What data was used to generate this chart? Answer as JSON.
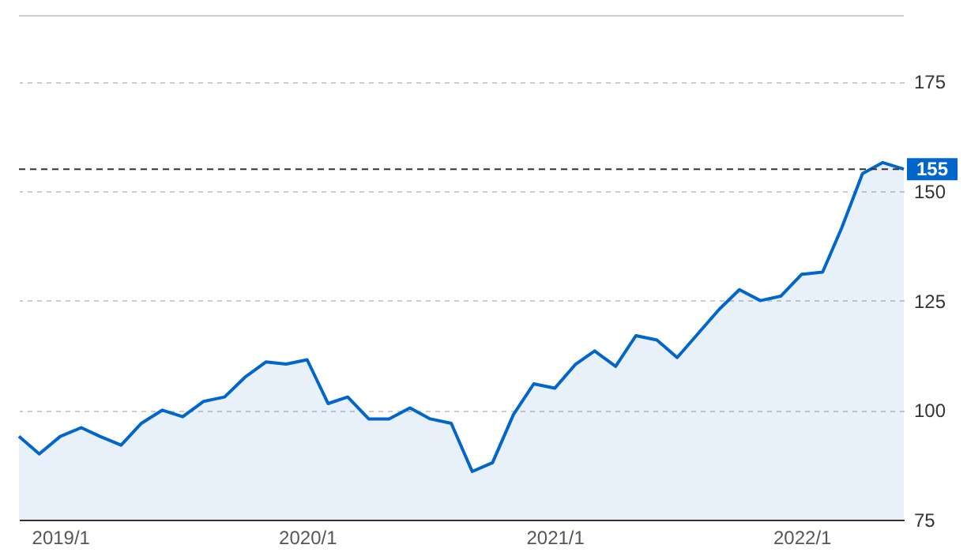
{
  "chart_data": {
    "type": "area",
    "x": [
      "2018-11",
      "2018-12",
      "2019-01",
      "2019-02",
      "2019-03",
      "2019-04",
      "2019-05",
      "2019-06",
      "2019-07",
      "2019-08",
      "2019-09",
      "2019-10",
      "2019-11",
      "2019-12",
      "2020-01",
      "2020-02",
      "2020-03",
      "2020-04",
      "2020-05",
      "2020-06",
      "2020-07",
      "2020-08",
      "2020-09",
      "2020-10",
      "2020-11",
      "2020-12",
      "2021-01",
      "2021-02",
      "2021-03",
      "2021-04",
      "2021-05",
      "2021-06",
      "2021-07",
      "2021-08",
      "2021-09",
      "2021-10",
      "2021-11",
      "2021-12",
      "2022-01",
      "2022-02",
      "2022-03",
      "2022-04",
      "2022-05",
      "2022-06"
    ],
    "series": [
      {
        "color": "#0066cc",
        "values": [
          94,
          90,
          94,
          96,
          94,
          92,
          97,
          100,
          98.5,
          102,
          103,
          107.5,
          111,
          110.5,
          111.5,
          101.5,
          103,
          98,
          98,
          100.5,
          98,
          97,
          86,
          88,
          99,
          106,
          105,
          110.5,
          113.5,
          110,
          117,
          116,
          112,
          117.5,
          123,
          127.5,
          125,
          126,
          131,
          131.5,
          141.5,
          154,
          156.5,
          155
        ]
      }
    ],
    "xlim": [
      "2018-11",
      "2022-06"
    ],
    "xticks": [
      {
        "value": "2019-01",
        "label": "2019/1"
      },
      {
        "value": "2020-01",
        "label": "2020/1"
      },
      {
        "value": "2021-01",
        "label": "2021/1"
      },
      {
        "value": "2022-01",
        "label": "2022/1"
      }
    ],
    "ylim": [
      75,
      190
    ],
    "yticks": [
      75,
      100,
      125,
      150,
      175
    ],
    "grid": "y",
    "ref_lines": [
      {
        "axis": "y",
        "value": 155,
        "label": "155",
        "color": "#333333",
        "line_style": "dashed"
      }
    ]
  }
}
